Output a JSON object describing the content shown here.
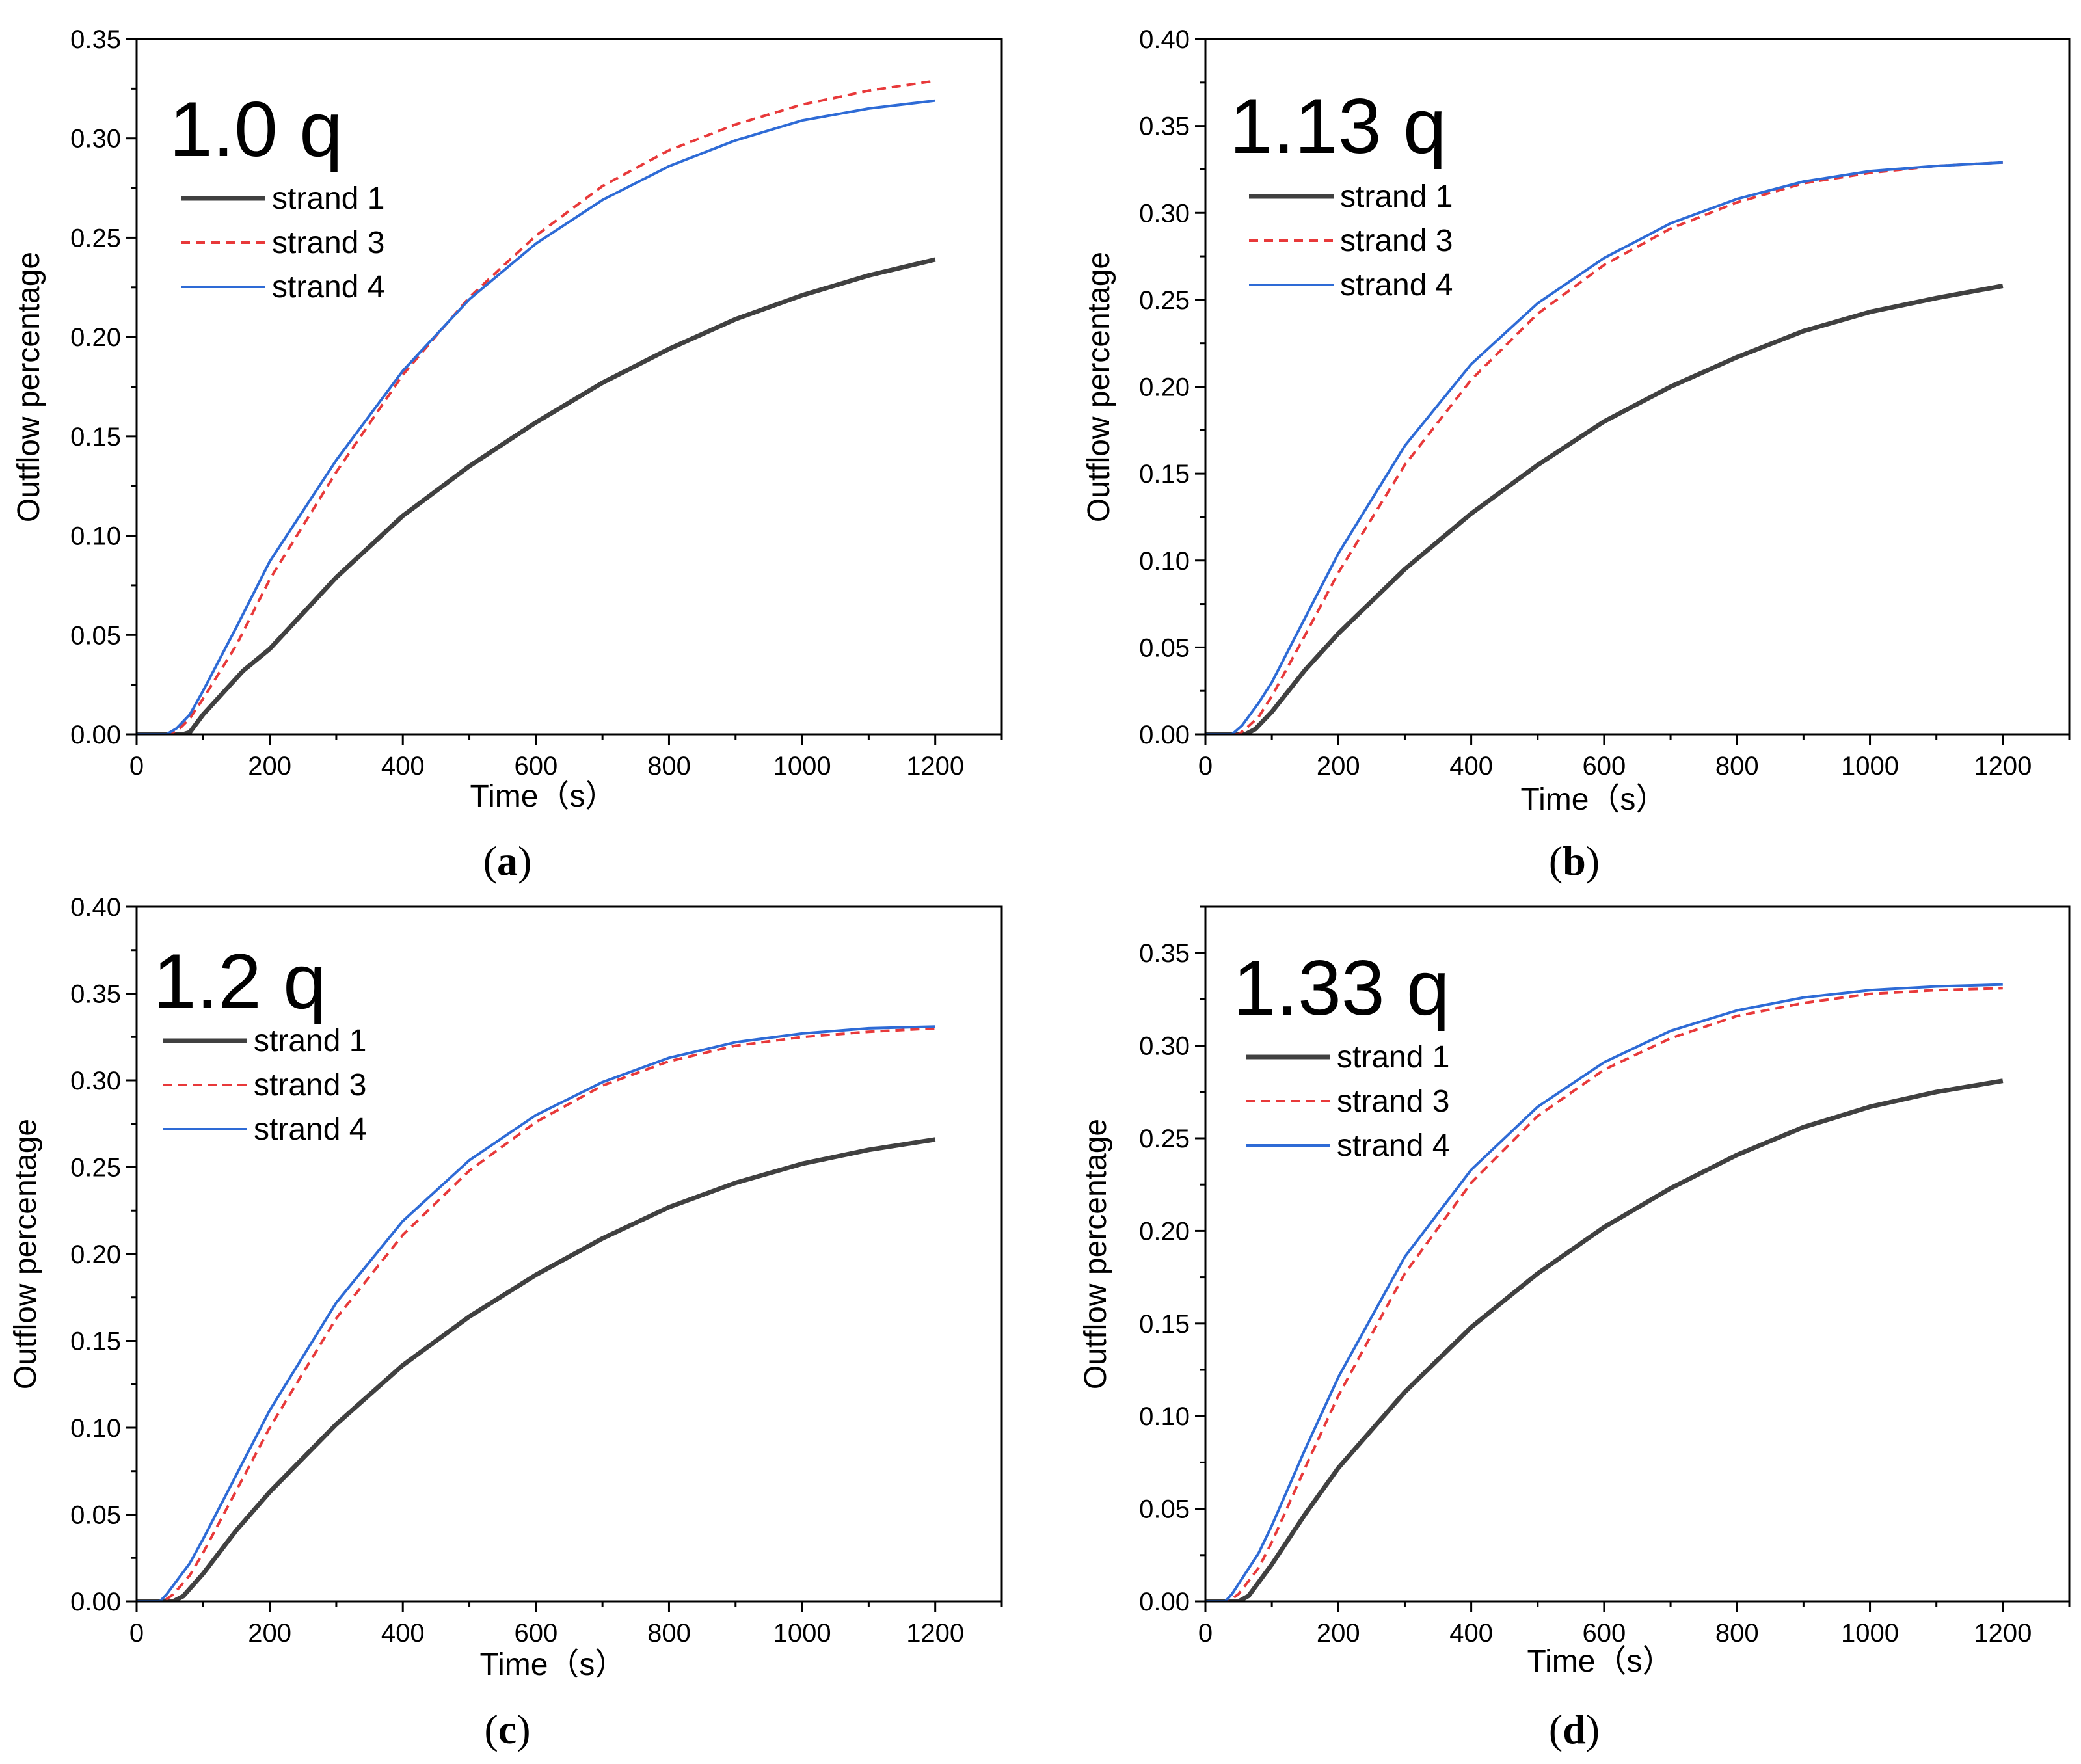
{
  "chart_data": [
    {
      "type": "line",
      "panel": "a",
      "caption": {
        "open": "(",
        "letter": "a",
        "close": ")"
      },
      "annotation": "1.0 q",
      "xlabel": "Time（s）",
      "ylabel": "Outflow percentage",
      "xlim": [
        0,
        1300
      ],
      "ylim": [
        0,
        0.35
      ],
      "xticks": [
        0,
        200,
        400,
        600,
        800,
        1000,
        1200
      ],
      "xtick_labels": [
        "0",
        "200",
        "400",
        "600",
        "800",
        "1000",
        "1200"
      ],
      "yticks": [
        0,
        0.05,
        0.1,
        0.15,
        0.2,
        0.25,
        0.3,
        0.35
      ],
      "ytick_labels": [
        "0.00",
        "0.05",
        "0.10",
        "0.15",
        "0.20",
        "0.25",
        "0.30",
        "0.35"
      ],
      "legend_position": "top-left",
      "series": [
        {
          "name": "strand 1",
          "style": "solid-thick",
          "color": "#404040",
          "x": [
            0,
            70,
            80,
            100,
            160,
            200,
            300,
            400,
            500,
            600,
            700,
            800,
            900,
            1000,
            1100,
            1200
          ],
          "y": [
            0,
            0,
            0.001,
            0.01,
            0.032,
            0.043,
            0.079,
            0.11,
            0.135,
            0.157,
            0.177,
            0.194,
            0.209,
            0.221,
            0.231,
            0.239
          ]
        },
        {
          "name": "strand 3",
          "style": "dashed",
          "color": "#e8393a",
          "x": [
            0,
            50,
            65,
            80,
            100,
            150,
            200,
            300,
            400,
            500,
            600,
            700,
            800,
            900,
            1000,
            1100,
            1200
          ],
          "y": [
            0,
            0,
            0.003,
            0.008,
            0.018,
            0.045,
            0.078,
            0.132,
            0.181,
            0.22,
            0.251,
            0.276,
            0.294,
            0.307,
            0.317,
            0.324,
            0.329
          ]
        },
        {
          "name": "strand 4",
          "style": "solid-thin",
          "color": "#2e6bd6",
          "x": [
            0,
            45,
            60,
            80,
            100,
            150,
            200,
            300,
            400,
            500,
            600,
            700,
            800,
            900,
            1000,
            1100,
            1200
          ],
          "y": [
            0,
            0,
            0.003,
            0.01,
            0.022,
            0.054,
            0.087,
            0.138,
            0.183,
            0.219,
            0.247,
            0.269,
            0.286,
            0.299,
            0.309,
            0.315,
            0.319
          ]
        }
      ]
    },
    {
      "type": "line",
      "panel": "b",
      "caption": {
        "open": "(",
        "letter": "b",
        "close": ")"
      },
      "annotation": "1.13 q",
      "xlabel": "Time（s）",
      "ylabel": "Outflow percentage",
      "xlim": [
        0,
        1300
      ],
      "ylim": [
        0,
        0.4
      ],
      "xticks": [
        0,
        200,
        400,
        600,
        800,
        1000,
        1200
      ],
      "xtick_labels": [
        "0",
        "200",
        "400",
        "600",
        "800",
        "1000",
        "1200"
      ],
      "yticks": [
        0,
        0.05,
        0.1,
        0.15,
        0.2,
        0.25,
        0.3,
        0.35,
        0.4
      ],
      "ytick_labels": [
        "0.00",
        "0.05",
        "0.10",
        "0.15",
        "0.20",
        "0.25",
        "0.30",
        "0.35",
        "0.40"
      ],
      "legend_position": "top-left",
      "series": [
        {
          "name": "strand 1",
          "style": "solid-thick",
          "color": "#404040",
          "x": [
            0,
            60,
            75,
            100,
            150,
            200,
            300,
            400,
            500,
            600,
            700,
            800,
            900,
            1000,
            1100,
            1200
          ],
          "y": [
            0,
            0,
            0.003,
            0.013,
            0.037,
            0.058,
            0.095,
            0.127,
            0.155,
            0.18,
            0.2,
            0.217,
            0.232,
            0.243,
            0.251,
            0.258
          ]
        },
        {
          "name": "strand 3",
          "style": "dashed",
          "color": "#e8393a",
          "x": [
            0,
            50,
            60,
            80,
            100,
            150,
            200,
            300,
            400,
            500,
            600,
            700,
            800,
            900,
            1000,
            1100,
            1200
          ],
          "y": [
            0,
            0,
            0.003,
            0.01,
            0.022,
            0.057,
            0.093,
            0.155,
            0.204,
            0.242,
            0.27,
            0.291,
            0.306,
            0.317,
            0.323,
            0.327,
            0.329
          ]
        },
        {
          "name": "strand 4",
          "style": "solid-thin",
          "color": "#2e6bd6",
          "x": [
            0,
            40,
            55,
            80,
            100,
            150,
            200,
            300,
            400,
            500,
            600,
            700,
            800,
            900,
            1000,
            1100,
            1200
          ],
          "y": [
            0,
            0,
            0.005,
            0.018,
            0.03,
            0.067,
            0.104,
            0.166,
            0.213,
            0.248,
            0.274,
            0.294,
            0.308,
            0.318,
            0.324,
            0.327,
            0.329
          ]
        }
      ]
    },
    {
      "type": "line",
      "panel": "c",
      "caption": {
        "open": "(",
        "letter": "c",
        "close": ")"
      },
      "annotation": "1.2 q",
      "xlabel": "Time（s）",
      "ylabel": "Outflow percentage",
      "xlim": [
        0,
        1300
      ],
      "ylim": [
        0,
        0.4
      ],
      "xticks": [
        0,
        200,
        400,
        600,
        800,
        1000,
        1200
      ],
      "xtick_labels": [
        "0",
        "200",
        "400",
        "600",
        "800",
        "1000",
        "1200"
      ],
      "yticks": [
        0,
        0.05,
        0.1,
        0.15,
        0.2,
        0.25,
        0.3,
        0.35,
        0.4
      ],
      "ytick_labels": [
        "0.00",
        "0.05",
        "0.10",
        "0.15",
        "0.20",
        "0.25",
        "0.30",
        "0.35",
        "0.40"
      ],
      "legend_position": "top-left",
      "series": [
        {
          "name": "strand 1",
          "style": "solid-thick",
          "color": "#404040",
          "x": [
            0,
            55,
            70,
            100,
            150,
            200,
            300,
            400,
            500,
            600,
            700,
            800,
            900,
            1000,
            1100,
            1200
          ],
          "y": [
            0,
            0,
            0.003,
            0.016,
            0.041,
            0.063,
            0.102,
            0.136,
            0.164,
            0.188,
            0.209,
            0.227,
            0.241,
            0.252,
            0.26,
            0.266
          ]
        },
        {
          "name": "strand 3",
          "style": "dashed",
          "color": "#e8393a",
          "x": [
            0,
            40,
            55,
            80,
            100,
            150,
            200,
            300,
            400,
            500,
            600,
            700,
            800,
            900,
            1000,
            1100,
            1200
          ],
          "y": [
            0,
            0,
            0.004,
            0.015,
            0.028,
            0.064,
            0.1,
            0.163,
            0.211,
            0.248,
            0.276,
            0.297,
            0.311,
            0.32,
            0.325,
            0.328,
            0.33
          ]
        },
        {
          "name": "strand 4",
          "style": "solid-thin",
          "color": "#2e6bd6",
          "x": [
            0,
            35,
            45,
            80,
            100,
            150,
            200,
            300,
            400,
            500,
            600,
            700,
            800,
            900,
            1000,
            1100,
            1200
          ],
          "y": [
            0,
            0,
            0.004,
            0.022,
            0.036,
            0.073,
            0.11,
            0.172,
            0.219,
            0.254,
            0.28,
            0.299,
            0.313,
            0.322,
            0.327,
            0.33,
            0.331
          ]
        }
      ]
    },
    {
      "type": "line",
      "panel": "d",
      "caption": {
        "open": "(",
        "letter": "d",
        "close": ")"
      },
      "annotation": "1.33 q",
      "xlabel": "Time（s）",
      "ylabel": "Outflow percentage",
      "xlim": [
        0,
        1300
      ],
      "ylim": [
        0,
        0.375
      ],
      "xticks": [
        0,
        200,
        400,
        600,
        800,
        1000,
        1200
      ],
      "xtick_labels": [
        "0",
        "200",
        "400",
        "600",
        "800",
        "1000",
        "1200"
      ],
      "yticks": [
        0,
        0.05,
        0.1,
        0.15,
        0.2,
        0.25,
        0.3,
        0.35
      ],
      "ytick_labels": [
        "0.00",
        "0.05",
        "0.10",
        "0.15",
        "0.20",
        "0.25",
        "0.30",
        "0.35"
      ],
      "legend_position": "top-left",
      "series": [
        {
          "name": "strand 1",
          "style": "solid-thick",
          "color": "#404040",
          "x": [
            0,
            50,
            65,
            100,
            150,
            200,
            300,
            400,
            500,
            600,
            700,
            800,
            900,
            1000,
            1100,
            1200
          ],
          "y": [
            0,
            0,
            0.003,
            0.02,
            0.047,
            0.072,
            0.113,
            0.148,
            0.177,
            0.202,
            0.223,
            0.241,
            0.256,
            0.267,
            0.275,
            0.281
          ]
        },
        {
          "name": "strand 3",
          "style": "dashed",
          "color": "#e8393a",
          "x": [
            0,
            35,
            50,
            80,
            100,
            150,
            200,
            300,
            400,
            500,
            600,
            700,
            800,
            900,
            1000,
            1100,
            1200
          ],
          "y": [
            0,
            0,
            0.004,
            0.018,
            0.032,
            0.072,
            0.111,
            0.177,
            0.226,
            0.262,
            0.287,
            0.304,
            0.316,
            0.323,
            0.328,
            0.33,
            0.331
          ]
        },
        {
          "name": "strand 4",
          "style": "solid-thin",
          "color": "#2e6bd6",
          "x": [
            0,
            30,
            40,
            80,
            100,
            150,
            200,
            300,
            400,
            500,
            600,
            700,
            800,
            900,
            1000,
            1100,
            1200
          ],
          "y": [
            0,
            0,
            0.004,
            0.026,
            0.041,
            0.082,
            0.121,
            0.186,
            0.233,
            0.267,
            0.291,
            0.308,
            0.319,
            0.326,
            0.33,
            0.332,
            0.333
          ]
        }
      ]
    }
  ]
}
